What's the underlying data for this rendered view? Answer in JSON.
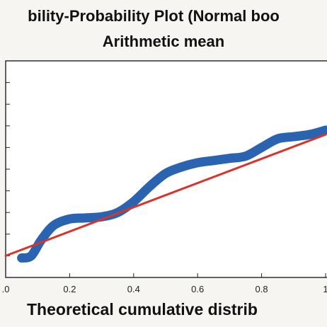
{
  "chart_data": {
    "type": "line",
    "title_line1": "bility-Probability Plot (Normal boo",
    "title_line2": "Arithmetic mean",
    "xlabel": "Theoretical cumulative distrib",
    "ylabel": "",
    "xlim": [
      0.0,
      1.0
    ],
    "ylim": [
      0.0,
      1.0
    ],
    "x_ticks": [
      0.0,
      0.2,
      0.4,
      0.6,
      0.8,
      1.0
    ],
    "x_tick_labels": [
      ".0",
      "0.2",
      "0.4",
      "0.6",
      "0.8",
      "1"
    ],
    "y_ticks": [
      0.1,
      0.2,
      0.3,
      0.4,
      0.5,
      0.6,
      0.7,
      0.8,
      0.9
    ],
    "grid": false,
    "series": [
      {
        "kind": "empirical",
        "color": "#2a63b0",
        "x": [
          0.05,
          0.08,
          0.11,
          0.15,
          0.2,
          0.25,
          0.3,
          0.35,
          0.4,
          0.45,
          0.5,
          0.55,
          0.6,
          0.65,
          0.7,
          0.75,
          0.8,
          0.85,
          0.9,
          0.95,
          1.0
        ],
        "y": [
          0.09,
          0.1,
          0.17,
          0.24,
          0.27,
          0.275,
          0.28,
          0.3,
          0.35,
          0.42,
          0.48,
          0.51,
          0.53,
          0.54,
          0.55,
          0.56,
          0.6,
          0.64,
          0.65,
          0.66,
          0.68
        ]
      },
      {
        "kind": "fit",
        "color": "#d9342b",
        "x": [
          0.0,
          1.0
        ],
        "y": [
          0.1,
          0.66
        ]
      }
    ]
  }
}
